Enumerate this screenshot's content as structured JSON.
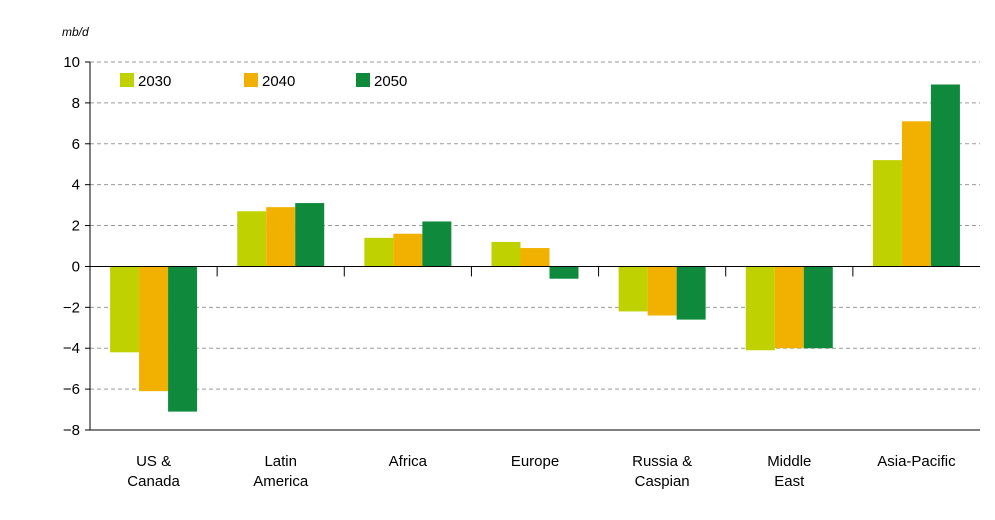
{
  "chart_data": {
    "type": "bar",
    "ylabel": "mb/d",
    "ylim": [
      -8,
      10
    ],
    "yticks": [
      10,
      8,
      6,
      4,
      2,
      0,
      -2,
      -4,
      -6,
      -8
    ],
    "y_tick_labels": [
      "10",
      "8",
      "6",
      "4",
      "2",
      "0",
      "−2",
      "−4",
      "−6",
      "−8"
    ],
    "grid": "horizontal dashed",
    "legend_position": "top-left",
    "categories": [
      [
        "US &",
        "Canada"
      ],
      [
        "Latin",
        "America"
      ],
      [
        "Africa"
      ],
      [
        "Europe"
      ],
      [
        "Russia &",
        "Caspian"
      ],
      [
        "Middle",
        "East"
      ],
      [
        "Asia-Pacific"
      ]
    ],
    "series": [
      {
        "name": "2030",
        "color": "#bfd200",
        "values": [
          -4.2,
          2.7,
          1.4,
          1.2,
          -2.2,
          -4.1,
          5.2
        ]
      },
      {
        "name": "2040",
        "color": "#f2b100",
        "values": [
          -6.1,
          2.9,
          1.6,
          0.9,
          -2.4,
          -4.0,
          7.1
        ]
      },
      {
        "name": "2050",
        "color": "#0f8a3c",
        "values": [
          -7.1,
          3.1,
          2.2,
          -0.6,
          -2.6,
          -4.0,
          8.9
        ]
      }
    ]
  }
}
